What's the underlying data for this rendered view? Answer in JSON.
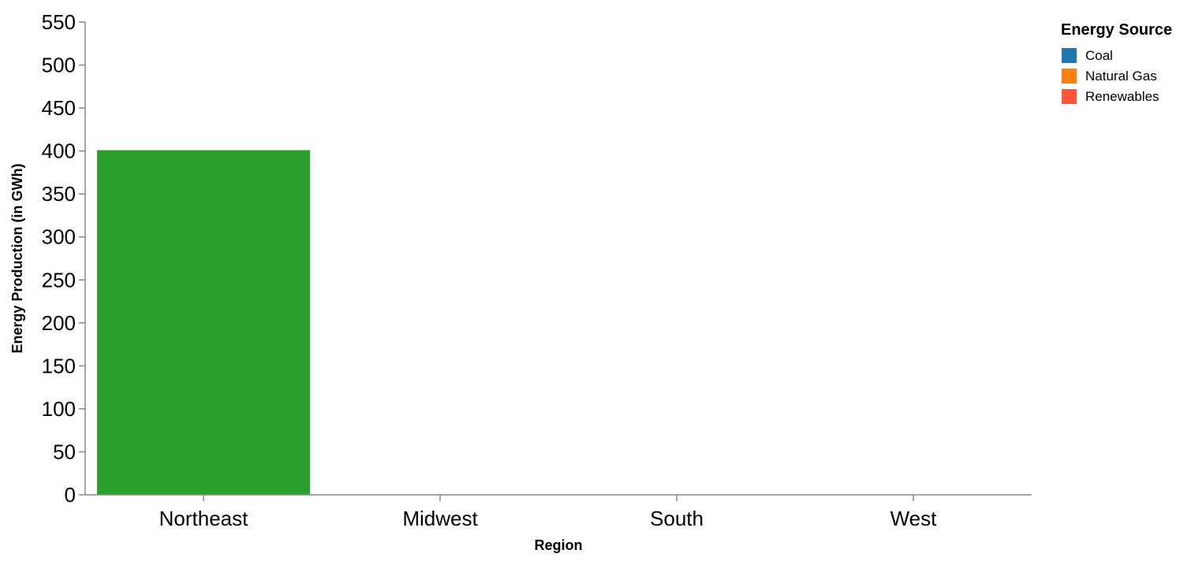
{
  "chart_data": {
    "type": "bar",
    "title": "",
    "xlabel": "Region",
    "ylabel": "Energy Production (in GWh)",
    "categories": [
      "Northeast",
      "Midwest",
      "South",
      "West"
    ],
    "ylim": [
      0,
      550
    ],
    "yticks": [
      "0",
      "50",
      "100",
      "150",
      "200",
      "250",
      "300",
      "350",
      "400",
      "450",
      "500",
      "550"
    ],
    "grid": false,
    "legend": {
      "title": "Energy Source",
      "placement": "top-right",
      "entries": [
        {
          "name": "Coal",
          "color": "#1f77b4"
        },
        {
          "name": "Natural Gas",
          "color": "#ff7f0e"
        },
        {
          "name": "Renewables",
          "color": "#ff5733"
        }
      ]
    },
    "series": [
      {
        "values": [
          401,
          0,
          0,
          0
        ],
        "color": "#2ca02c"
      }
    ]
  }
}
